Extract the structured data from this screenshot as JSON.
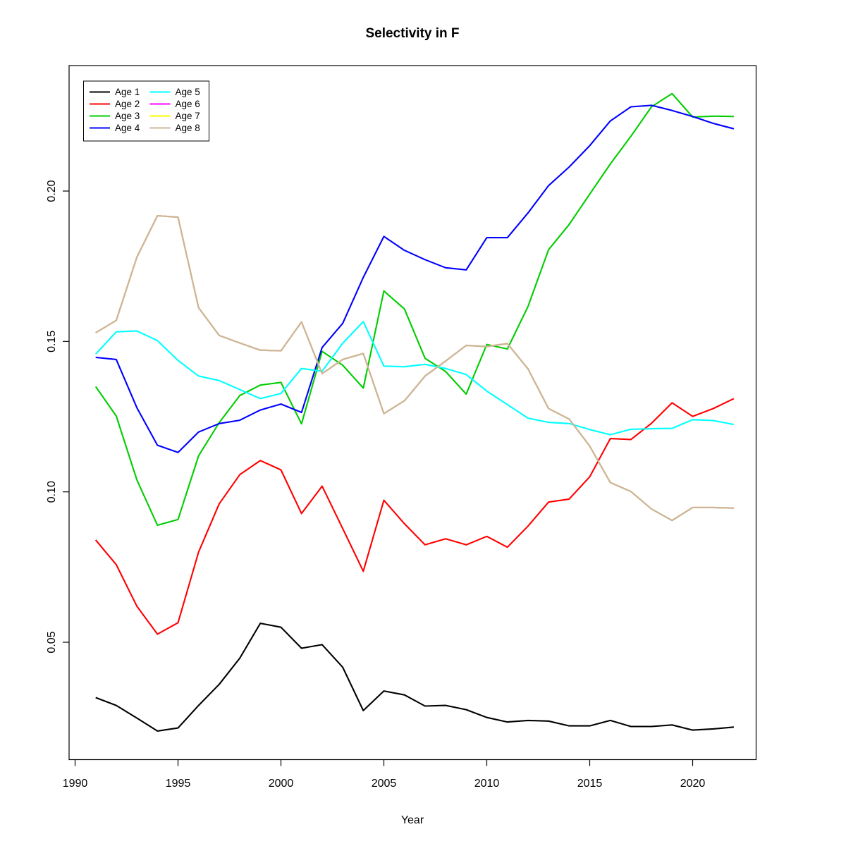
{
  "title": "Selectivity in F",
  "x_axis": {
    "label": "Year",
    "tick_labels": [
      "1990",
      "1995",
      "2000",
      "2005",
      "2010",
      "2015",
      "2020"
    ],
    "tick_values": [
      1990,
      1995,
      2000,
      2005,
      2010,
      2015,
      2020
    ]
  },
  "y_axis": {
    "tick_labels": [
      "0.05",
      "0.10",
      "0.15",
      "0.20"
    ],
    "tick_values": [
      0.05,
      0.1,
      0.15,
      0.2
    ]
  },
  "legend": {
    "position": "top-left",
    "columns": 2
  },
  "chart_data": {
    "type": "line",
    "title": "Selectivity in F",
    "xlabel": "Year",
    "ylabel": "",
    "grid": false,
    "legend_position": "top-left",
    "xlim": [
      1990,
      2023
    ],
    "ylim": [
      0.011,
      0.242
    ],
    "x": [
      1991,
      1992,
      1993,
      1994,
      1995,
      1996,
      1997,
      1998,
      1999,
      2000,
      2001,
      2002,
      2003,
      2004,
      2005,
      2006,
      2007,
      2008,
      2009,
      2010,
      2011,
      2012,
      2013,
      2014,
      2015,
      2016,
      2017,
      2018,
      2019,
      2020,
      2021,
      2022
    ],
    "series": [
      {
        "name": "Age 1",
        "color": "#000000",
        "values": [
          0.0316,
          0.029,
          0.0248,
          0.0205,
          0.0215,
          0.029,
          0.036,
          0.0447,
          0.0563,
          0.055,
          0.048,
          0.0492,
          0.0417,
          0.0273,
          0.0338,
          0.0325,
          0.0288,
          0.029,
          0.0276,
          0.025,
          0.0235,
          0.024,
          0.0238,
          0.0222,
          0.0222,
          0.024,
          0.022,
          0.022,
          0.0225,
          0.0208,
          0.0212,
          0.0218
        ]
      },
      {
        "name": "Age 2",
        "color": "#FF0000",
        "values": [
          0.084,
          0.0758,
          0.062,
          0.0527,
          0.0565,
          0.08,
          0.096,
          0.1057,
          0.1104,
          0.1073,
          0.0928,
          0.1019,
          0.0878,
          0.0736,
          0.0972,
          0.0894,
          0.0824,
          0.0844,
          0.0824,
          0.0852,
          0.0816,
          0.0886,
          0.0966,
          0.0976,
          0.105,
          0.1177,
          0.1174,
          0.1228,
          0.1296,
          0.1251,
          0.1277,
          0.131
        ]
      },
      {
        "name": "Age 3",
        "color": "#00CD00",
        "values": [
          0.135,
          0.1252,
          0.104,
          0.0889,
          0.0908,
          0.112,
          0.123,
          0.132,
          0.1355,
          0.1364,
          0.1226,
          0.1467,
          0.1421,
          0.1345,
          0.1668,
          0.1608,
          0.1444,
          0.14,
          0.1325,
          0.149,
          0.1475,
          0.1616,
          0.1805,
          0.1889,
          0.199,
          0.209,
          0.2182,
          0.228,
          0.2324,
          0.2246,
          0.2249,
          0.2248
        ]
      },
      {
        "name": "Age 4",
        "color": "#0000FF",
        "values": [
          0.1447,
          0.144,
          0.128,
          0.1155,
          0.1131,
          0.1199,
          0.1227,
          0.1238,
          0.1272,
          0.1292,
          0.1264,
          0.148,
          0.156,
          0.1713,
          0.1849,
          0.1803,
          0.1772,
          0.1745,
          0.1738,
          0.1845,
          0.1845,
          0.1927,
          0.2018,
          0.208,
          0.2151,
          0.2233,
          0.228,
          0.2285,
          0.2268,
          0.2248,
          0.2225,
          0.2207
        ]
      },
      {
        "name": "Age 5",
        "color": "#00FFFF",
        "values": [
          0.1458,
          0.1532,
          0.1535,
          0.1503,
          0.1437,
          0.1385,
          0.137,
          0.134,
          0.131,
          0.1327,
          0.141,
          0.1401,
          0.1494,
          0.1566,
          0.1418,
          0.1416,
          0.1424,
          0.141,
          0.139,
          0.1335,
          0.129,
          0.1245,
          0.1231,
          0.1227,
          0.1207,
          0.119,
          0.1208,
          0.121,
          0.1211,
          0.124,
          0.1237,
          0.1224
        ]
      },
      {
        "name": "Age 6",
        "color": "#FF00FF",
        "values": [
          0.1529,
          0.157,
          0.178,
          0.1918,
          0.1913,
          0.1612,
          0.152,
          0.1495,
          0.1471,
          0.1469,
          0.1565,
          0.1393,
          0.144,
          0.146,
          0.126,
          0.1303,
          0.1385,
          0.1435,
          0.1487,
          0.1483,
          0.1493,
          0.1409,
          0.1277,
          0.1242,
          0.1152,
          0.1031,
          0.1001,
          0.0943,
          0.0905,
          0.0948,
          0.0948,
          0.0946
        ]
      },
      {
        "name": "Age 7",
        "color": "#FFFF00",
        "values": [
          0.1529,
          0.157,
          0.178,
          0.1918,
          0.1913,
          0.1612,
          0.152,
          0.1495,
          0.1471,
          0.1469,
          0.1565,
          0.1393,
          0.144,
          0.146,
          0.126,
          0.1303,
          0.1385,
          0.1435,
          0.1487,
          0.1483,
          0.1493,
          0.1409,
          0.1277,
          0.1242,
          0.1152,
          0.1031,
          0.1001,
          0.0943,
          0.0905,
          0.0948,
          0.0948,
          0.0946
        ]
      },
      {
        "name": "Age 8",
        "color": "#C8B79B",
        "values": [
          0.1529,
          0.157,
          0.178,
          0.1918,
          0.1913,
          0.1612,
          0.152,
          0.1495,
          0.1471,
          0.1469,
          0.1565,
          0.1393,
          0.144,
          0.146,
          0.126,
          0.1303,
          0.1385,
          0.1435,
          0.1487,
          0.1483,
          0.1493,
          0.1409,
          0.1277,
          0.1242,
          0.1152,
          0.1031,
          0.1001,
          0.0943,
          0.0905,
          0.0948,
          0.0948,
          0.0946
        ]
      }
    ]
  }
}
